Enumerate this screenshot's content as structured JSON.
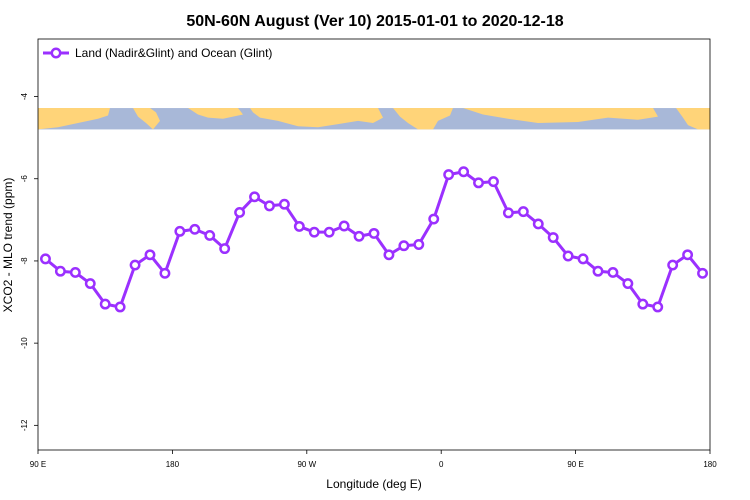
{
  "chart_data": {
    "type": "line",
    "title": "50N-60N August (Ver 10)   2015-01-01 to 2020-12-18",
    "xlabel": "Longitude (deg E)",
    "ylabel": "XCO2 - MLO trend (ppm)",
    "x_tick_labels": [
      "90 E",
      "180",
      "90 W",
      "0",
      "90 E",
      "180"
    ],
    "y_tick_labels": [
      "-4",
      "-6",
      "-8",
      "-10",
      "-12"
    ],
    "y_ticks": [
      -4,
      -6,
      -8,
      -10,
      -12
    ],
    "ylim": [
      -12.6,
      -2.6
    ],
    "xlim_index": [
      -0.5,
      44.5
    ],
    "x_ticks_index": [
      -0.5,
      8.5,
      17.5,
      26.5,
      35.5,
      44.5
    ],
    "grid": false,
    "legend_position": "top-left",
    "series": [
      {
        "name": "Land (Nadir&Glint) and Ocean (Glint)",
        "color": "#9b30ff",
        "values": [
          -7.95,
          -8.25,
          -8.28,
          -8.55,
          -9.05,
          -9.12,
          -8.1,
          -7.85,
          -8.3,
          -7.28,
          -7.23,
          -7.38,
          -7.7,
          -6.82,
          -6.44,
          -6.66,
          -6.62,
          -7.16,
          -7.3,
          -7.3,
          -7.15,
          -7.4,
          -7.33,
          -7.85,
          -7.63,
          -7.6,
          -6.98,
          -5.9,
          -5.83,
          -6.1,
          -6.07,
          -6.83,
          -6.8,
          -7.1,
          -7.43,
          -7.88,
          -7.95,
          -8.25,
          -8.28,
          -8.55,
          -9.05,
          -9.12,
          -8.1,
          -7.85,
          -8.3
        ]
      }
    ],
    "map_strip": {
      "ocean_color": "#a8b8d8",
      "land_color": "#ffd479",
      "y_range": [
        -4.28,
        -4.8
      ]
    }
  }
}
